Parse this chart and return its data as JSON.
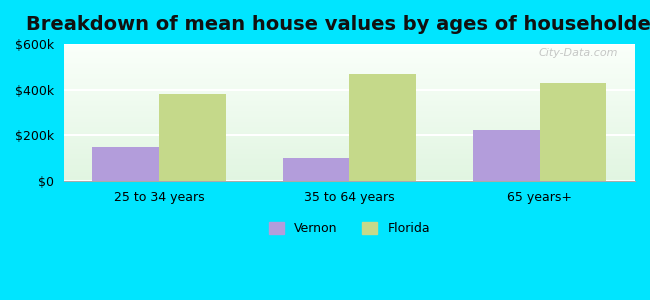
{
  "title": "Breakdown of mean house values by ages of householders",
  "categories": [
    "25 to 34 years",
    "35 to 64 years",
    "65 years+"
  ],
  "series": [
    {
      "name": "Vernon",
      "values": [
        150000,
        100000,
        225000
      ],
      "color": "#b39ddb"
    },
    {
      "name": "Florida",
      "values": [
        380000,
        470000,
        430000
      ],
      "color": "#c5d98a"
    }
  ],
  "ylim": [
    0,
    600000
  ],
  "yticks": [
    0,
    200000,
    400000,
    600000
  ],
  "ytick_labels": [
    "$0",
    "$200k",
    "$400k",
    "$600k"
  ],
  "outer_bg": "#00e5ff",
  "bar_width": 0.35,
  "title_fontsize": 14,
  "tick_fontsize": 9,
  "legend_fontsize": 9,
  "watermark": "City-Data.com"
}
